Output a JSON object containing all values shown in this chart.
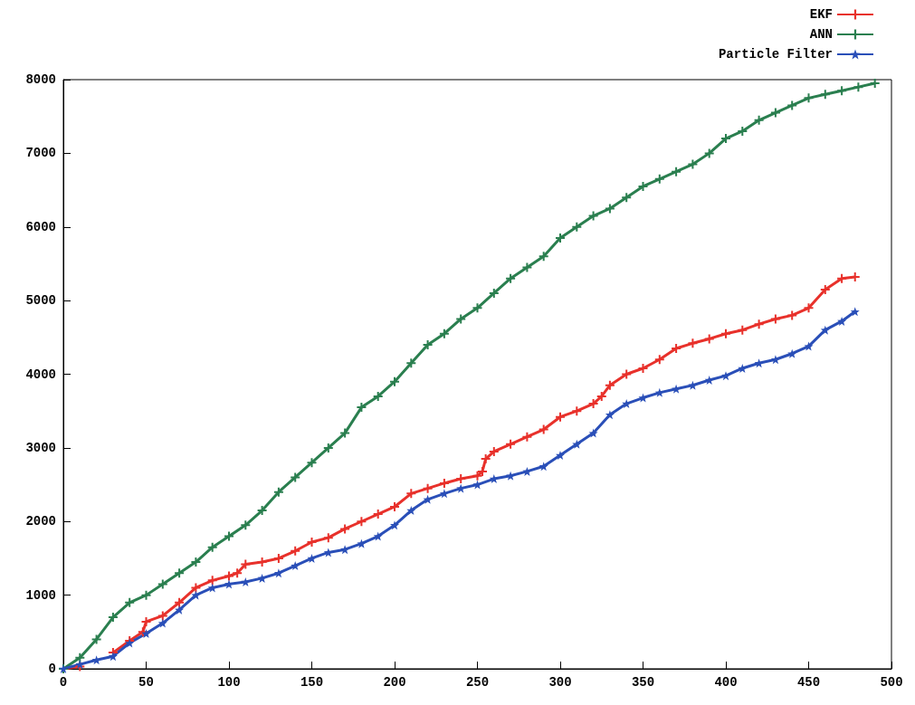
{
  "chart_data": {
    "type": "line",
    "xlim": [
      0,
      500
    ],
    "xticks": [
      0,
      50,
      100,
      150,
      200,
      250,
      300,
      350,
      400,
      450,
      500
    ],
    "ylim": [
      0,
      8000
    ],
    "yticks": [
      0,
      1000,
      2000,
      3000,
      4000,
      5000,
      6000,
      7000,
      8000
    ],
    "grid": false,
    "legend": "top right",
    "series": [
      {
        "name": "EKF",
        "color": "#e8312b",
        "marker": "cross",
        "x": [
          0,
          10,
          20,
          30,
          40,
          48,
          50,
          60,
          70,
          80,
          90,
          100,
          105,
          110,
          120,
          130,
          140,
          150,
          160,
          170,
          180,
          190,
          200,
          210,
          220,
          230,
          240,
          250,
          253,
          255,
          260,
          270,
          280,
          290,
          300,
          310,
          320,
          325,
          330,
          340,
          350,
          360,
          370,
          380,
          390,
          400,
          410,
          420,
          430,
          440,
          450,
          460,
          470,
          478
        ],
        "values": [
          0,
          30,
          null,
          220,
          380,
          500,
          640,
          720,
          900,
          1100,
          1200,
          1260,
          1300,
          1420,
          1450,
          1500,
          1600,
          1720,
          1780,
          1900,
          2000,
          2100,
          2200,
          2380,
          2450,
          2520,
          2580,
          2620,
          2680,
          2850,
          2950,
          3050,
          3150,
          3250,
          3420,
          3500,
          3600,
          3700,
          3850,
          4000,
          4080,
          4200,
          4350,
          4420,
          4480,
          4550,
          4600,
          4680,
          4750,
          4800,
          4900,
          5150,
          5300,
          5320
        ]
      },
      {
        "name": "ANN",
        "color": "#2a7f4f",
        "marker": "cross",
        "x": [
          0,
          10,
          20,
          30,
          40,
          50,
          60,
          70,
          80,
          90,
          100,
          110,
          120,
          130,
          140,
          150,
          160,
          170,
          180,
          190,
          200,
          210,
          220,
          230,
          240,
          250,
          260,
          270,
          280,
          290,
          300,
          310,
          320,
          330,
          340,
          350,
          360,
          370,
          380,
          390,
          400,
          410,
          420,
          430,
          440,
          450,
          460,
          470,
          480,
          490
        ],
        "values": [
          0,
          150,
          400,
          700,
          900,
          1000,
          1150,
          1300,
          1450,
          1650,
          1800,
          1950,
          2150,
          2400,
          2600,
          2800,
          3000,
          3200,
          3550,
          3700,
          3900,
          4150,
          4400,
          4550,
          4750,
          4900,
          5100,
          5300,
          5450,
          5600,
          5850,
          6000,
          6150,
          6250,
          6400,
          6550,
          6650,
          6750,
          6850,
          7000,
          7200,
          7300,
          7450,
          7550,
          7650,
          7750,
          7800,
          7850,
          7900,
          7950
        ]
      },
      {
        "name": "Particle Filter",
        "color": "#2a4fb8",
        "marker": "star",
        "x": [
          0,
          10,
          20,
          30,
          40,
          50,
          60,
          70,
          80,
          90,
          100,
          110,
          120,
          130,
          140,
          150,
          160,
          170,
          180,
          190,
          200,
          210,
          220,
          230,
          240,
          250,
          260,
          270,
          280,
          290,
          300,
          310,
          320,
          330,
          340,
          350,
          360,
          370,
          380,
          390,
          400,
          410,
          420,
          430,
          440,
          450,
          460,
          470,
          478
        ],
        "values": [
          0,
          60,
          120,
          170,
          350,
          480,
          620,
          800,
          1000,
          1100,
          1150,
          1180,
          1230,
          1300,
          1400,
          1500,
          1580,
          1620,
          1700,
          1800,
          1950,
          2150,
          2300,
          2380,
          2450,
          2500,
          2580,
          2620,
          2680,
          2750,
          2900,
          3050,
          3200,
          3450,
          3600,
          3680,
          3750,
          3800,
          3850,
          3920,
          3980,
          4080,
          4150,
          4200,
          4280,
          4380,
          4600,
          4720,
          4850
        ]
      }
    ]
  }
}
